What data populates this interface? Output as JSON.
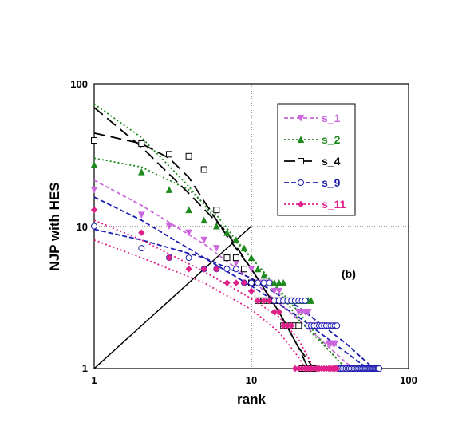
{
  "chart_data": {
    "type": "scatter",
    "xscale": "log",
    "yscale": "log",
    "xlim": [
      1,
      100
    ],
    "ylim": [
      1,
      100
    ],
    "xlabel": "rank",
    "ylabel": "NJP with HES",
    "x_ticks": [
      "1",
      "10",
      "100"
    ],
    "y_ticks": [
      "1",
      "10",
      "100"
    ],
    "grid": "dotted lines at x=10 and y=10",
    "legend_position": "top-right",
    "annotation": "(b)",
    "reference_line": {
      "from": [
        1,
        1
      ],
      "to": [
        10,
        10
      ]
    },
    "series": [
      {
        "name": "s_1",
        "color": "#cc66dd",
        "marker": "triangle-down",
        "fill": true,
        "dash": "5,3",
        "points": [
          [
            1,
            18
          ],
          [
            2,
            12
          ],
          [
            3,
            10
          ],
          [
            4,
            9
          ],
          [
            5,
            8
          ],
          [
            6,
            7
          ],
          [
            7,
            6
          ],
          [
            8,
            5.5
          ],
          [
            9,
            5
          ],
          [
            10,
            5
          ],
          [
            11,
            4
          ],
          [
            12,
            4
          ],
          [
            13,
            4
          ],
          [
            14,
            3.5
          ],
          [
            15,
            3.5
          ],
          [
            16,
            3
          ],
          [
            17,
            3
          ],
          [
            18,
            3
          ],
          [
            19,
            3
          ],
          [
            20,
            2.5
          ],
          [
            21,
            2.5
          ],
          [
            22,
            2.5
          ],
          [
            23,
            2.5
          ],
          [
            24,
            2
          ],
          [
            25,
            2
          ],
          [
            26,
            2
          ],
          [
            27,
            2
          ],
          [
            28,
            2
          ],
          [
            29,
            2
          ],
          [
            30,
            2
          ],
          [
            31,
            1.5
          ],
          [
            32,
            1.5
          ],
          [
            33,
            1.5
          ],
          [
            34,
            1.5
          ],
          [
            35,
            1
          ],
          [
            36,
            1
          ],
          [
            37,
            1
          ],
          [
            38,
            1
          ],
          [
            39,
            1
          ],
          [
            40,
            1
          ]
        ],
        "fit": [
          [
            1,
            21
          ],
          [
            2,
            14
          ],
          [
            5,
            7.5
          ],
          [
            10,
            4.2
          ],
          [
            20,
            2.2
          ],
          [
            40,
            1.1
          ],
          [
            45,
            1
          ]
        ]
      },
      {
        "name": "s_2",
        "color": "#1e8a1e",
        "marker": "triangle-up",
        "fill": true,
        "dash": "2,3",
        "points": [
          [
            1,
            27
          ],
          [
            2,
            24
          ],
          [
            3,
            18
          ],
          [
            4,
            13
          ],
          [
            5,
            11
          ],
          [
            6,
            10
          ],
          [
            7,
            9
          ],
          [
            8,
            8
          ],
          [
            9,
            7
          ],
          [
            10,
            6
          ],
          [
            11,
            5
          ],
          [
            12,
            4.5
          ],
          [
            13,
            4
          ],
          [
            14,
            4
          ],
          [
            15,
            4
          ],
          [
            16,
            4
          ],
          [
            17,
            3
          ],
          [
            18,
            3
          ],
          [
            19,
            3
          ],
          [
            20,
            3
          ],
          [
            21,
            3
          ],
          [
            22,
            3
          ],
          [
            23,
            3
          ],
          [
            24,
            3
          ]
        ],
        "fit": [
          [
            1,
            72
          ],
          [
            2,
            42
          ],
          [
            4,
            19
          ],
          [
            7,
            9
          ],
          [
            10,
            6
          ],
          [
            15,
            3.6
          ],
          [
            20,
            2.5
          ],
          [
            30,
            1.4
          ],
          [
            40,
            1
          ]
        ],
        "fit2": [
          [
            1,
            30
          ],
          [
            2,
            26
          ],
          [
            4,
            18
          ],
          [
            6,
            12
          ],
          [
            8,
            8
          ],
          [
            10,
            6
          ],
          [
            15,
            3.5
          ],
          [
            20,
            2.2
          ],
          [
            30,
            1.4
          ],
          [
            40,
            1
          ]
        ]
      },
      {
        "name": "s_4",
        "color": "#000000",
        "marker": "square",
        "fill": false,
        "dash": "14,7",
        "points": [
          [
            1,
            40
          ],
          [
            2,
            38
          ],
          [
            3,
            32
          ],
          [
            4,
            31
          ],
          [
            5,
            25
          ],
          [
            6,
            13
          ],
          [
            7,
            6
          ],
          [
            8,
            6
          ],
          [
            9,
            5
          ],
          [
            10,
            4
          ],
          [
            11,
            3
          ],
          [
            12,
            3
          ],
          [
            13,
            3
          ],
          [
            14,
            3
          ],
          [
            15,
            3
          ],
          [
            16,
            2
          ],
          [
            17,
            2
          ],
          [
            18,
            2
          ],
          [
            19,
            2
          ],
          [
            20,
            2
          ],
          [
            21,
            1
          ],
          [
            22,
            1
          ],
          [
            23,
            1
          ],
          [
            24,
            1
          ],
          [
            25,
            1
          ]
        ],
        "fit": [
          [
            1,
            45
          ],
          [
            2,
            38
          ],
          [
            3,
            30
          ],
          [
            4,
            22
          ],
          [
            5,
            15
          ],
          [
            7,
            8.5
          ],
          [
            10,
            5
          ],
          [
            15,
            2.5
          ],
          [
            20,
            1.4
          ],
          [
            23,
            1
          ]
        ],
        "fit2": [
          [
            1,
            68
          ],
          [
            2,
            36
          ],
          [
            4,
            17
          ],
          [
            7,
            9
          ],
          [
            10,
            5
          ],
          [
            15,
            2.5
          ],
          [
            20,
            1.4
          ],
          [
            25,
            1
          ]
        ]
      },
      {
        "name": "s_9",
        "color": "#1c1cb0",
        "marker": "circle",
        "fill": false,
        "dash": "6,3",
        "points": [
          [
            1,
            10
          ],
          [
            2,
            7
          ],
          [
            3,
            6
          ],
          [
            4,
            6
          ],
          [
            5,
            5
          ],
          [
            6,
            5
          ],
          [
            7,
            5
          ],
          [
            8,
            5
          ],
          [
            9,
            4
          ],
          [
            10,
            4
          ],
          [
            11,
            4
          ],
          [
            12,
            4
          ],
          [
            13,
            4
          ],
          [
            14,
            3
          ],
          [
            15,
            3
          ],
          [
            16,
            3
          ],
          [
            17,
            3
          ],
          [
            18,
            3
          ],
          [
            19,
            3
          ],
          [
            20,
            3
          ],
          [
            21,
            3
          ],
          [
            22,
            3
          ],
          [
            23,
            2
          ],
          [
            24,
            2
          ],
          [
            25,
            2
          ],
          [
            26,
            2
          ],
          [
            27,
            2
          ],
          [
            28,
            2
          ],
          [
            29,
            2
          ],
          [
            30,
            2
          ],
          [
            31,
            2
          ],
          [
            32,
            2
          ],
          [
            33,
            2
          ],
          [
            34,
            2
          ],
          [
            35,
            2
          ],
          [
            36,
            1
          ],
          [
            37,
            1
          ],
          [
            38,
            1
          ],
          [
            39,
            1
          ],
          [
            40,
            1
          ],
          [
            41,
            1
          ],
          [
            42,
            1
          ],
          [
            43,
            1
          ],
          [
            44,
            1
          ],
          [
            45,
            1
          ],
          [
            46,
            1
          ],
          [
            47,
            1
          ],
          [
            48,
            1
          ],
          [
            49,
            1
          ],
          [
            50,
            1
          ],
          [
            51,
            1
          ],
          [
            52,
            1
          ],
          [
            53,
            1
          ],
          [
            54,
            1
          ],
          [
            55,
            1
          ],
          [
            56,
            1
          ],
          [
            57,
            1
          ],
          [
            58,
            1
          ],
          [
            59,
            1
          ],
          [
            60,
            1
          ],
          [
            61,
            1
          ],
          [
            62,
            1
          ],
          [
            63,
            1
          ],
          [
            64,
            1
          ],
          [
            65,
            1
          ]
        ],
        "fit": [
          [
            1,
            9.5
          ],
          [
            2,
            8
          ],
          [
            5,
            6
          ],
          [
            10,
            4.3
          ],
          [
            20,
            2.7
          ],
          [
            40,
            1.5
          ],
          [
            60,
            1
          ]
        ],
        "fit2": [
          [
            1,
            16
          ],
          [
            2,
            11
          ],
          [
            5,
            6
          ],
          [
            10,
            3.8
          ],
          [
            20,
            2.3
          ],
          [
            40,
            1.3
          ],
          [
            55,
            1
          ]
        ]
      },
      {
        "name": "s_11",
        "color": "#e0208a",
        "marker": "diamond",
        "fill": true,
        "dash": "2,3",
        "points": [
          [
            1,
            13
          ],
          [
            2,
            9
          ],
          [
            3,
            6
          ],
          [
            4,
            5
          ],
          [
            5,
            5
          ],
          [
            6,
            5
          ],
          [
            7,
            4
          ],
          [
            8,
            4
          ],
          [
            9,
            4
          ],
          [
            10,
            3.5
          ],
          [
            11,
            3
          ],
          [
            12,
            3
          ],
          [
            13,
            3
          ],
          [
            14,
            2.5
          ],
          [
            15,
            2.5
          ],
          [
            16,
            2
          ],
          [
            17,
            2
          ],
          [
            18,
            2
          ],
          [
            19,
            1
          ],
          [
            20,
            1
          ],
          [
            21,
            1
          ],
          [
            22,
            1
          ],
          [
            23,
            1
          ],
          [
            24,
            1
          ],
          [
            25,
            1
          ],
          [
            26,
            1
          ],
          [
            27,
            1
          ],
          [
            28,
            1
          ],
          [
            29,
            1
          ],
          [
            30,
            1
          ],
          [
            31,
            1
          ],
          [
            32,
            1
          ],
          [
            33,
            1
          ],
          [
            34,
            1
          ],
          [
            35,
            1
          ]
        ],
        "fit": [
          [
            1,
            11
          ],
          [
            2,
            8
          ],
          [
            5,
            4.8
          ],
          [
            10,
            3.1
          ],
          [
            15,
            2.3
          ],
          [
            20,
            1.6
          ],
          [
            25,
            1
          ]
        ],
        "fit2": [
          [
            1,
            8
          ],
          [
            2,
            6
          ],
          [
            5,
            4
          ],
          [
            10,
            2.6
          ],
          [
            15,
            1.8
          ],
          [
            20,
            1.2
          ],
          [
            22,
            1
          ]
        ]
      }
    ]
  }
}
